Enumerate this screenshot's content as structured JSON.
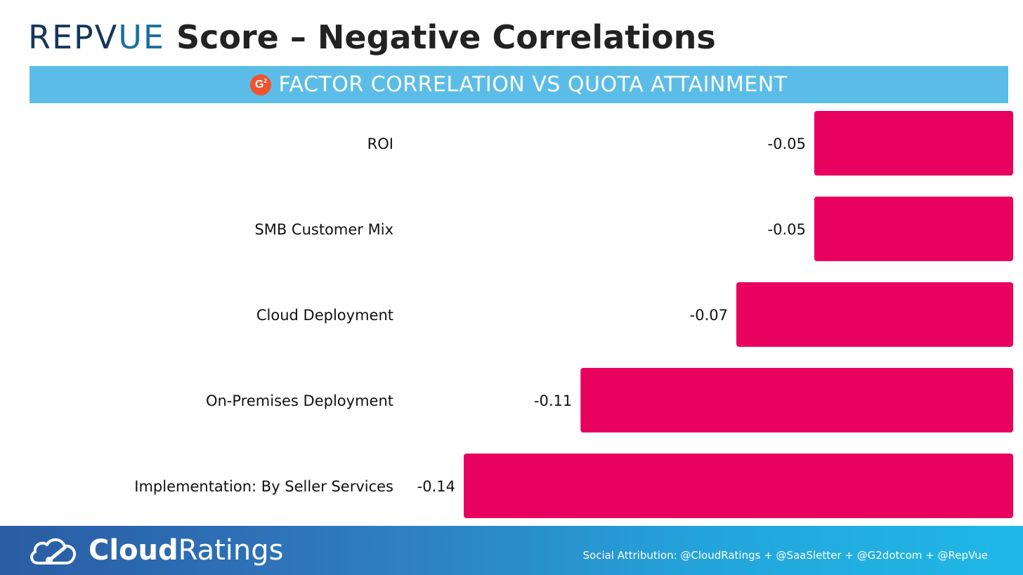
{
  "header": {
    "brand_a": "REPV",
    "brand_b": "UE",
    "title": "Score – Negative Correlations",
    "banner_badge": "G",
    "banner_badge_sup": "2",
    "banner_text": "FACTOR CORRELATION VS QUOTA ATTAINMENT"
  },
  "chart_data": {
    "type": "bar",
    "orientation": "horizontal",
    "categories": [
      "ROI",
      "SMB Customer Mix",
      "Cloud Deployment",
      "On-Premises Deployment",
      "Implementation: By Seller Services"
    ],
    "values": [
      -0.05,
      -0.05,
      -0.07,
      -0.11,
      -0.14
    ],
    "value_labels": [
      "-0.05",
      "-0.05",
      "-0.07",
      "-0.11",
      "-0.14"
    ],
    "title": "FACTOR CORRELATION VS QUOTA ATTAINMENT",
    "xlabel": "",
    "ylabel": "",
    "xlim": [
      -0.14,
      0
    ],
    "grid": false,
    "bar_color": "#e8015e"
  },
  "footer": {
    "logo_bold": "Cloud",
    "logo_light": "Ratings",
    "attribution": "Social Attribution: @CloudRatings + @SaaSletter + @G2dotcom + @RepVue"
  },
  "colors": {
    "banner": "#5bbde7",
    "bar": "#e8015e",
    "brand": "#1a6f9e",
    "g2_badge": "#f0532e"
  },
  "icons": {
    "g2": "g2-logo-icon",
    "cloud": "cloud-gauge-icon"
  }
}
